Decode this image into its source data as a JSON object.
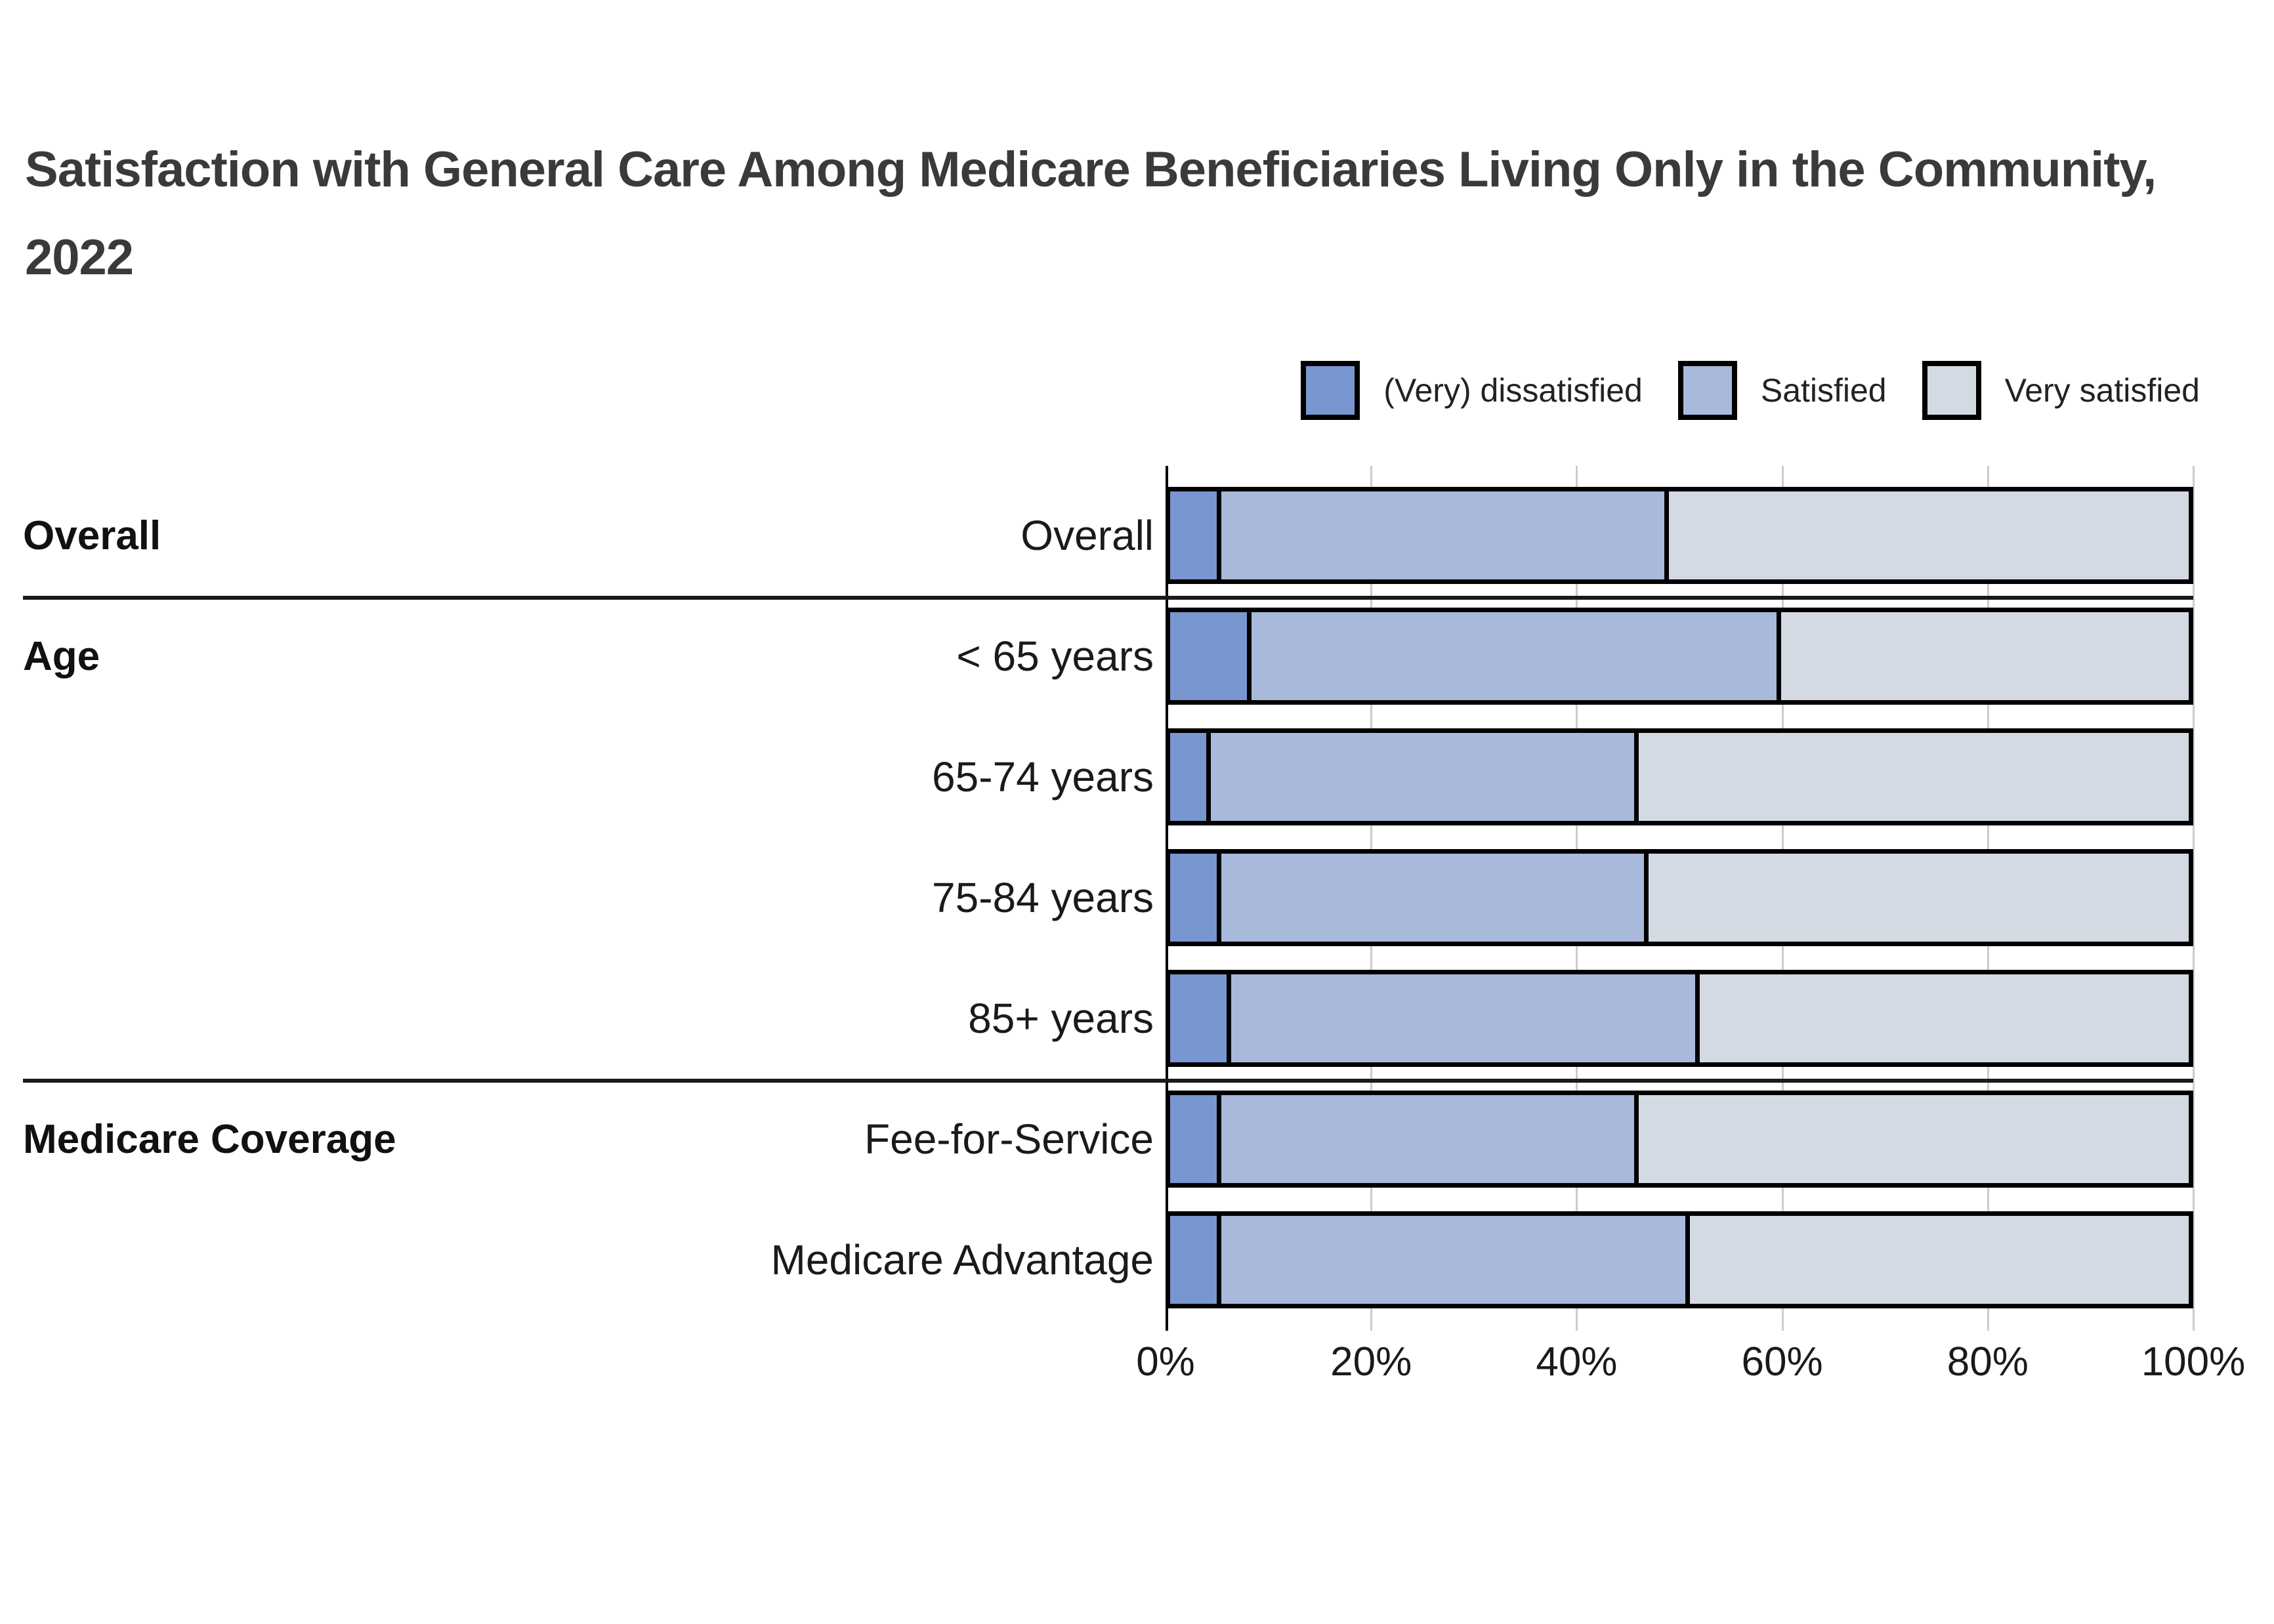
{
  "title": "Satisfaction with General Care Among Medicare Beneficiaries Living Only in the Community, 2022",
  "legend": [
    {
      "label": "(Very) dissatisfied",
      "color": "#7896D0"
    },
    {
      "label": "Satisfied",
      "color": "#A9B9DC"
    },
    {
      "label": "Very satisfied",
      "color": "#D4DAE4"
    }
  ],
  "colors": {
    "dissatisfied": "#7896D0",
    "satisfied": "#A9B9DC",
    "very_satisfied": "#D4DAE4",
    "bar_border": "#000000",
    "gridline": "#cccccc",
    "separator": "#1a1a1a",
    "title_text": "#3a3a3a",
    "label_text": "#1a1a1a"
  },
  "chart_data": {
    "type": "bar",
    "subtype": "horizontal-stacked-100pct",
    "title": "Satisfaction with General Care Among Medicare Beneficiaries Living Only in the Community, 2022",
    "categories": [
      "Overall",
      "< 65 years",
      "65-74 years",
      "75-84 years",
      "85+ years",
      "Fee-for-Service",
      "Medicare Advantage"
    ],
    "groups": [
      {
        "label": "Overall",
        "start": 0,
        "count": 1
      },
      {
        "label": "Age",
        "start": 1,
        "count": 4
      },
      {
        "label": "Medicare Coverage",
        "start": 5,
        "count": 2
      }
    ],
    "series": [
      {
        "name": "(Very) dissatisfied",
        "color": "#7896D0",
        "values": [
          5,
          8,
          4,
          5,
          6,
          5,
          5
        ]
      },
      {
        "name": "Satisfied",
        "color": "#A9B9DC",
        "values": [
          44,
          52,
          42,
          42,
          46,
          41,
          46
        ]
      },
      {
        "name": "Very satisfied",
        "color": "#D4DAE4",
        "values": [
          51,
          40,
          54,
          53,
          48,
          54,
          49
        ]
      }
    ],
    "x_ticks": [
      "0%",
      "20%",
      "40%",
      "60%",
      "80%",
      "100%"
    ],
    "xlim": [
      0,
      100
    ],
    "xlabel": "",
    "ylabel": "",
    "grid": "vertical",
    "legend_position": "top-right"
  }
}
